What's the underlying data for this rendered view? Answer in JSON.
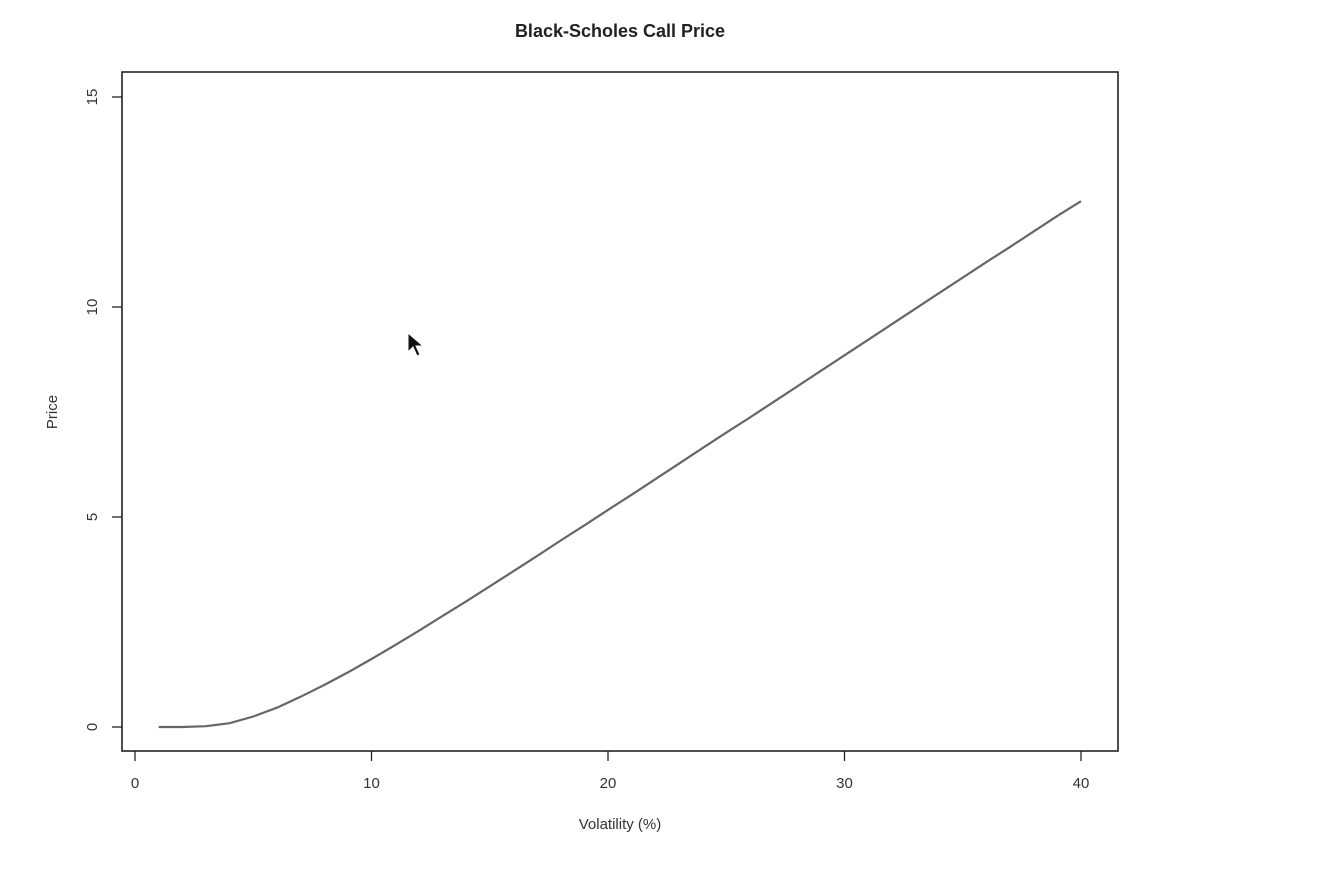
{
  "chart_data": {
    "type": "line",
    "title": "Black-Scholes Call Price",
    "xlabel": "Volatility (%)",
    "ylabel": "Price",
    "xlim": [
      0,
      40
    ],
    "ylim": [
      0,
      15
    ],
    "xticks": [
      0,
      10,
      20,
      30,
      40
    ],
    "yticks": [
      0,
      5,
      10,
      15
    ],
    "grid": false,
    "series": [
      {
        "x": [
          1,
          2,
          3,
          4,
          5,
          6,
          7,
          8,
          9,
          10,
          11,
          12,
          13,
          14,
          15,
          16,
          17,
          18,
          19,
          20,
          21,
          22,
          23,
          24,
          25,
          26,
          27,
          28,
          29,
          30,
          31,
          32,
          33,
          34,
          35,
          36,
          37,
          38,
          39,
          40
        ],
        "y": [
          0.0,
          0.0,
          0.02,
          0.09,
          0.25,
          0.46,
          0.72,
          1.0,
          1.3,
          1.62,
          1.95,
          2.29,
          2.64,
          2.99,
          3.35,
          3.71,
          4.07,
          4.44,
          4.8,
          5.17,
          5.53,
          5.9,
          6.27,
          6.64,
          7.01,
          7.37,
          7.74,
          8.11,
          8.48,
          8.85,
          9.22,
          9.59,
          9.96,
          10.33,
          10.7,
          11.07,
          11.43,
          11.8,
          12.17,
          12.52
        ],
        "color": "#666666"
      }
    ]
  }
}
